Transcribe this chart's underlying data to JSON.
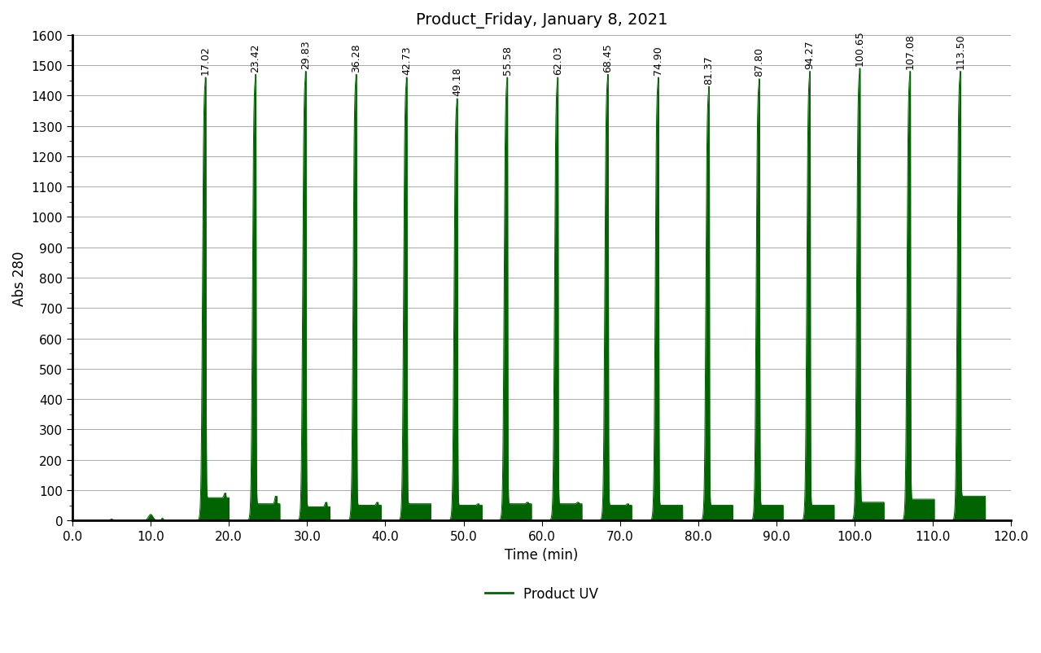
{
  "title": "Product_Friday, January 8, 2021",
  "xlabel": "Time (min)",
  "ylabel": "Abs 280",
  "xlim": [
    0.0,
    120.0
  ],
  "ylim": [
    0,
    1600
  ],
  "xticks": [
    0.0,
    10.0,
    20.0,
    30.0,
    40.0,
    50.0,
    60.0,
    70.0,
    80.0,
    90.0,
    100.0,
    110.0,
    120.0
  ],
  "yticks": [
    0,
    100,
    200,
    300,
    400,
    500,
    600,
    700,
    800,
    900,
    1000,
    1100,
    1200,
    1300,
    1400,
    1500,
    1600
  ],
  "peak_times": [
    17.02,
    23.42,
    29.83,
    36.28,
    42.73,
    49.18,
    55.58,
    62.03,
    68.45,
    74.9,
    81.37,
    87.8,
    94.27,
    100.65,
    107.08,
    113.5
  ],
  "peak_heights": [
    1460,
    1470,
    1480,
    1470,
    1460,
    1390,
    1460,
    1460,
    1470,
    1460,
    1430,
    1455,
    1480,
    1490,
    1480,
    1480
  ],
  "shelf_heights": [
    75,
    55,
    45,
    50,
    55,
    50,
    55,
    55,
    50,
    50,
    50,
    50,
    50,
    60,
    70,
    80
  ],
  "shelf_widths": [
    1.8,
    1.9,
    1.9,
    2.0,
    1.9,
    2.0,
    1.9,
    1.9,
    1.85,
    1.9,
    1.85,
    1.85,
    1.9,
    1.9,
    1.9,
    2.0
  ],
  "secondary_bump_heights": [
    90,
    80,
    60,
    60,
    55,
    55,
    60,
    60,
    55,
    50,
    50,
    50,
    50,
    60,
    70,
    80
  ],
  "line_color": "#006400",
  "background_color": "#ffffff",
  "legend_label": "Product UV",
  "title_fontsize": 14,
  "axis_fontsize": 12,
  "tick_fontsize": 11,
  "label_fontsize": 9
}
